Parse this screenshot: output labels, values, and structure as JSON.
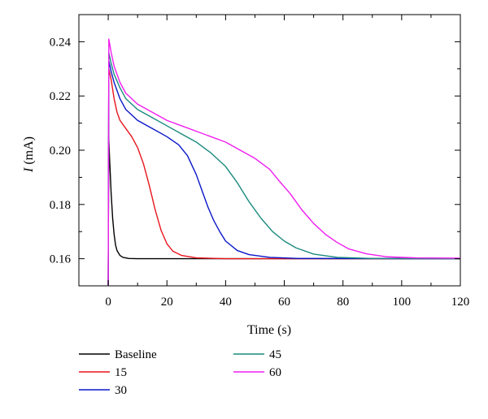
{
  "chart_data": {
    "type": "line",
    "title": "",
    "xlabel": "Time (s)",
    "ylabel_symbol": "I",
    "ylabel_unit": " (mA)",
    "xlim": [
      -10,
      120
    ],
    "ylim": [
      0.15,
      0.25
    ],
    "x_ticks": [
      0,
      20,
      40,
      60,
      80,
      100,
      120
    ],
    "x_tick_labels": [
      "0",
      "20",
      "40",
      "60",
      "80",
      "100",
      "120"
    ],
    "y_ticks": [
      0.16,
      0.18,
      0.2,
      0.22,
      0.24
    ],
    "y_tick_labels": [
      "0.16",
      "0.18",
      "0.20",
      "0.22",
      "0.24"
    ],
    "grid": false,
    "legend_position": "bottom",
    "series": [
      {
        "name": "Baseline",
        "color": "#000000",
        "points": [
          [
            0,
            0.15
          ],
          [
            0.15,
            0.205
          ],
          [
            0.5,
            0.196
          ],
          [
            1,
            0.184
          ],
          [
            1.5,
            0.175
          ],
          [
            2,
            0.169
          ],
          [
            2.5,
            0.165
          ],
          [
            3,
            0.163
          ],
          [
            4,
            0.1612
          ],
          [
            5,
            0.1605
          ],
          [
            7,
            0.1601
          ],
          [
            10,
            0.16
          ],
          [
            40,
            0.16
          ],
          [
            80,
            0.16
          ],
          [
            120,
            0.16
          ]
        ]
      },
      {
        "name": "15",
        "color": "#e8141c",
        "points": [
          [
            0,
            0.15
          ],
          [
            0.2,
            0.23
          ],
          [
            1,
            0.226
          ],
          [
            2,
            0.219
          ],
          [
            3,
            0.214
          ],
          [
            4,
            0.211
          ],
          [
            6,
            0.208
          ],
          [
            8,
            0.205
          ],
          [
            10,
            0.201
          ],
          [
            12,
            0.195
          ],
          [
            14,
            0.187
          ],
          [
            16,
            0.178
          ],
          [
            18,
            0.1705
          ],
          [
            20,
            0.1655
          ],
          [
            22,
            0.1628
          ],
          [
            25,
            0.1612
          ],
          [
            30,
            0.1603
          ],
          [
            40,
            0.16
          ],
          [
            60,
            0.16
          ],
          [
            120,
            0.16
          ]
        ]
      },
      {
        "name": "30",
        "color": "#0a16c8",
        "points": [
          [
            0,
            0.15
          ],
          [
            0.2,
            0.233
          ],
          [
            1,
            0.229
          ],
          [
            2,
            0.225
          ],
          [
            4,
            0.219
          ],
          [
            6,
            0.215
          ],
          [
            10,
            0.211
          ],
          [
            15,
            0.208
          ],
          [
            20,
            0.205
          ],
          [
            24,
            0.202
          ],
          [
            27,
            0.198
          ],
          [
            30,
            0.191
          ],
          [
            32,
            0.185
          ],
          [
            34,
            0.179
          ],
          [
            36,
            0.174
          ],
          [
            38,
            0.17
          ],
          [
            40,
            0.1665
          ],
          [
            44,
            0.163
          ],
          [
            48,
            0.1615
          ],
          [
            55,
            0.1605
          ],
          [
            65,
            0.1601
          ],
          [
            120,
            0.16
          ]
        ]
      },
      {
        "name": "45",
        "color": "#1a8a7e",
        "points": [
          [
            0,
            0.15
          ],
          [
            0.2,
            0.236
          ],
          [
            1,
            0.232
          ],
          [
            2,
            0.228
          ],
          [
            4,
            0.223
          ],
          [
            6,
            0.219
          ],
          [
            10,
            0.215
          ],
          [
            15,
            0.212
          ],
          [
            20,
            0.209
          ],
          [
            25,
            0.206
          ],
          [
            30,
            0.203
          ],
          [
            35,
            0.199
          ],
          [
            40,
            0.194
          ],
          [
            44,
            0.188
          ],
          [
            48,
            0.181
          ],
          [
            52,
            0.175
          ],
          [
            56,
            0.17
          ],
          [
            60,
            0.1665
          ],
          [
            64,
            0.164
          ],
          [
            70,
            0.1617
          ],
          [
            78,
            0.1605
          ],
          [
            90,
            0.1601
          ],
          [
            120,
            0.16
          ]
        ]
      },
      {
        "name": "60",
        "color": "#f01ef0",
        "points": [
          [
            0,
            0.15
          ],
          [
            0.2,
            0.241
          ],
          [
            1,
            0.236
          ],
          [
            2,
            0.231
          ],
          [
            4,
            0.225
          ],
          [
            6,
            0.221
          ],
          [
            10,
            0.217
          ],
          [
            15,
            0.214
          ],
          [
            20,
            0.211
          ],
          [
            25,
            0.209
          ],
          [
            30,
            0.207
          ],
          [
            35,
            0.205
          ],
          [
            40,
            0.203
          ],
          [
            45,
            0.2
          ],
          [
            50,
            0.197
          ],
          [
            55,
            0.193
          ],
          [
            58,
            0.189
          ],
          [
            62,
            0.184
          ],
          [
            66,
            0.178
          ],
          [
            70,
            0.173
          ],
          [
            74,
            0.169
          ],
          [
            78,
            0.166
          ],
          [
            82,
            0.1636
          ],
          [
            88,
            0.1618
          ],
          [
            95,
            0.1607
          ],
          [
            105,
            0.1603
          ],
          [
            120,
            0.1602
          ]
        ]
      }
    ]
  }
}
